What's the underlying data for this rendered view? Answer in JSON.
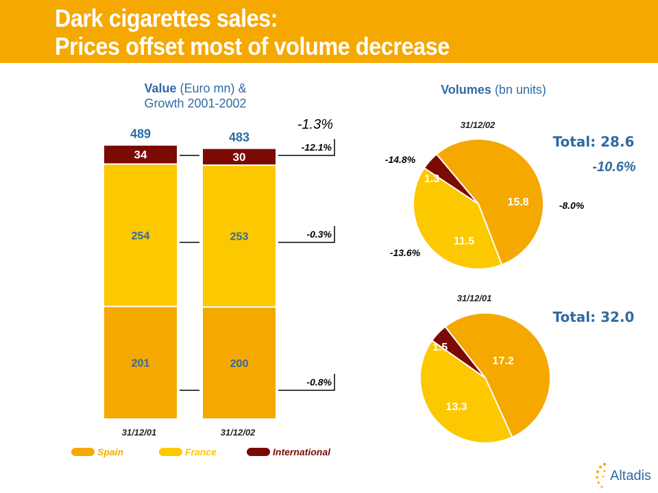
{
  "header": {
    "title_line1": "Dark cigarettes sales:",
    "title_line2": "Prices offset most of volume decrease"
  },
  "value_section": {
    "title_bold": "Value",
    "title_rest": " (Euro mn) &",
    "title_line2": "Growth 2001-2002"
  },
  "volume_section": {
    "title_bold": "Volumes",
    "title_rest": " (bn units)"
  },
  "colors": {
    "spain": "#f5a800",
    "france": "#fcc800",
    "international": "#7b0a05",
    "blue": "#2f6aa3",
    "header": "#f5a800"
  },
  "chart_data": [
    {
      "type": "bar",
      "subtype": "stacked",
      "unit": "Euro mn",
      "categories": [
        "31/12/01",
        "31/12/02"
      ],
      "totals": [
        "489",
        "483"
      ],
      "series": [
        {
          "name": "Spain",
          "values": [
            201,
            200
          ],
          "labels": [
            "201",
            "200"
          ],
          "growth": "-0.8%"
        },
        {
          "name": "France",
          "values": [
            254,
            253
          ],
          "labels": [
            "254",
            "253"
          ],
          "growth": "-0.3%"
        },
        {
          "name": "International",
          "values": [
            34,
            30
          ],
          "labels": [
            "34",
            "30"
          ],
          "growth": "-12.1%"
        }
      ],
      "total_growth": "-1.3%",
      "legend": [
        "Spain",
        "France",
        "International"
      ],
      "legend_position": "bottom"
    },
    {
      "type": "pie",
      "date": "31/12/02",
      "total_label": "Total: 28.6",
      "total_growth": "-10.6%",
      "slices": [
        {
          "name": "Spain",
          "value": 15.8,
          "label": "15.8",
          "growth": "-8.0%"
        },
        {
          "name": "France",
          "value": 11.5,
          "label": "11.5",
          "growth": "-13.6%"
        },
        {
          "name": "International",
          "value": 1.3,
          "label": "1.3",
          "growth": "-14.8%"
        }
      ]
    },
    {
      "type": "pie",
      "date": "31/12/01",
      "total_label": "Total: 32.0",
      "slices": [
        {
          "name": "Spain",
          "value": 17.2,
          "label": "17.2"
        },
        {
          "name": "France",
          "value": 13.3,
          "label": "13.3"
        },
        {
          "name": "International",
          "value": 1.5,
          "label": "1.5"
        }
      ]
    }
  ],
  "logo": {
    "text": "Altadis"
  }
}
